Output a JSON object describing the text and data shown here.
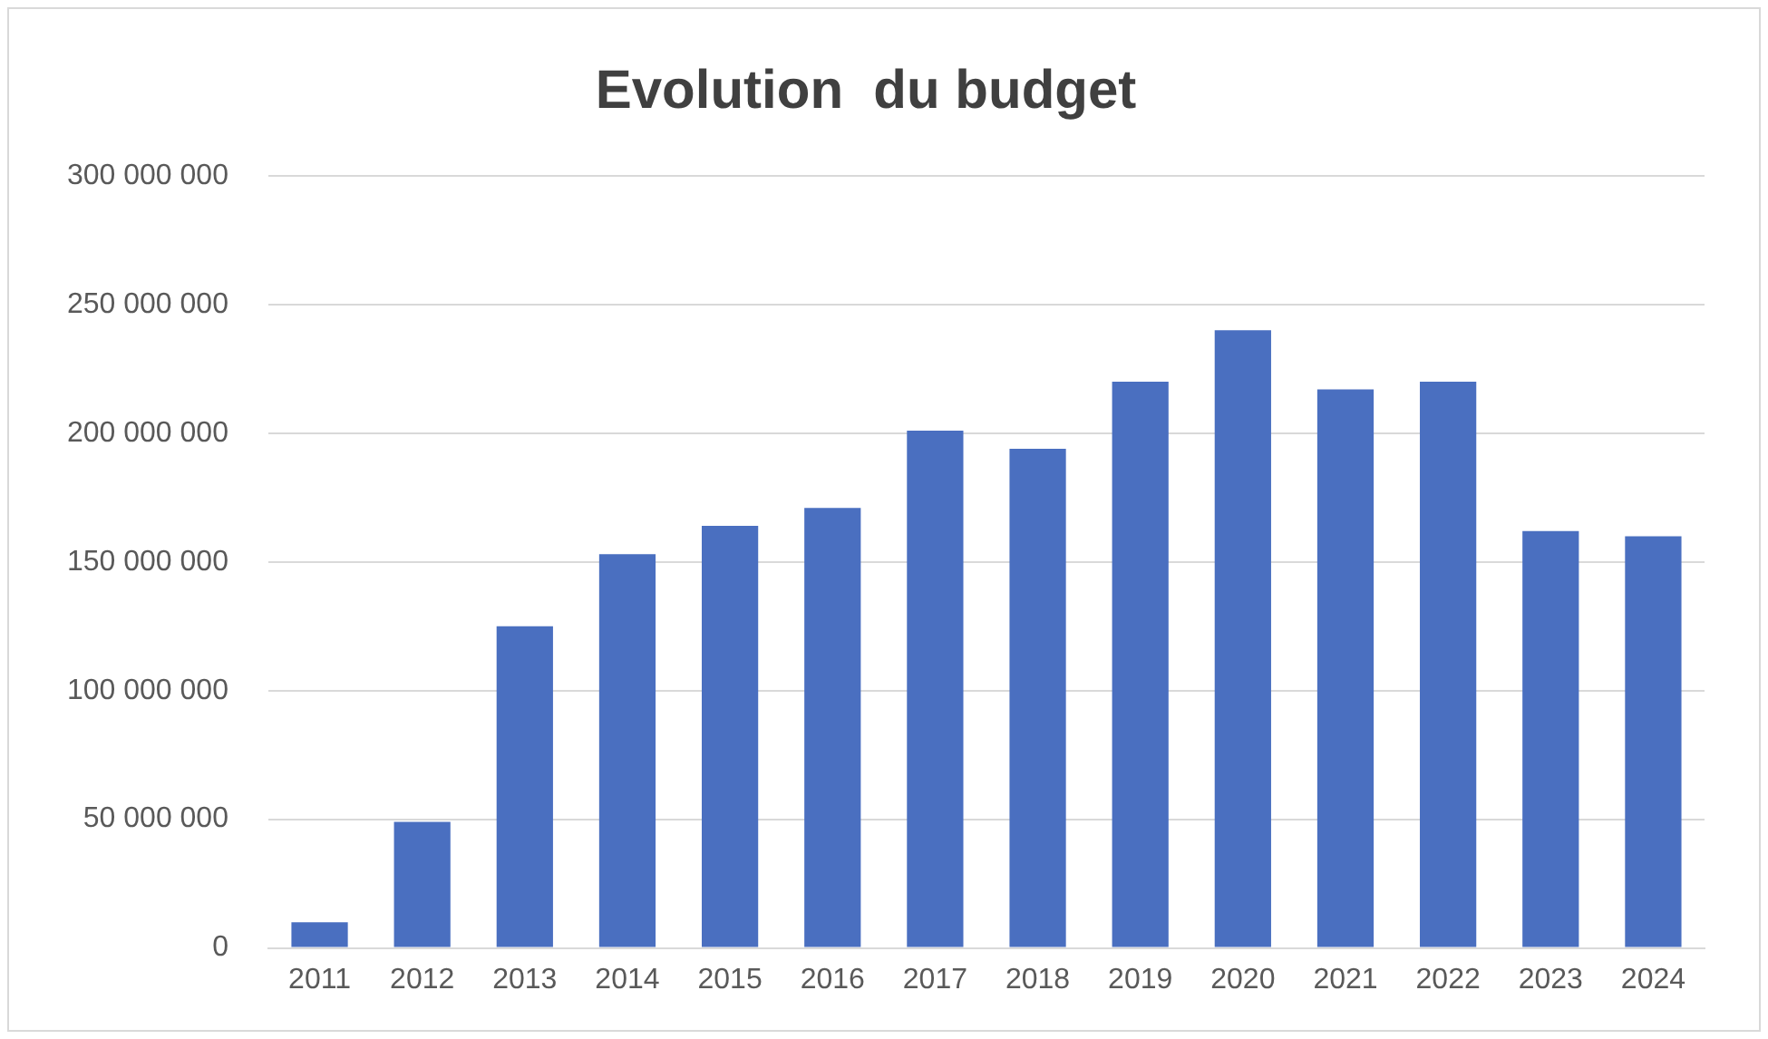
{
  "chart_data": {
    "type": "bar",
    "title": "Evolution  du budget",
    "categories": [
      "2011",
      "2012",
      "2013",
      "2014",
      "2015",
      "2016",
      "2017",
      "2018",
      "2019",
      "2020",
      "2021",
      "2022",
      "2023",
      "2024"
    ],
    "values": [
      10000000,
      49000000,
      125000000,
      153000000,
      164000000,
      171000000,
      201000000,
      194000000,
      220000000,
      240000000,
      217000000,
      220000000,
      162000000,
      160000000
    ],
    "color": "#4a6fc0",
    "ylim": [
      0,
      300000000
    ],
    "yticks": [
      {
        "value": 0,
        "label": "0"
      },
      {
        "value": 50000000,
        "label": "50 000 000"
      },
      {
        "value": 100000000,
        "label": "100 000 000"
      },
      {
        "value": 150000000,
        "label": "150 000 000"
      },
      {
        "value": 200000000,
        "label": "200 000 000"
      },
      {
        "value": 250000000,
        "label": "250 000 000"
      },
      {
        "value": 300000000,
        "label": "300 000 000"
      }
    ],
    "grid": "y",
    "legend": false
  }
}
